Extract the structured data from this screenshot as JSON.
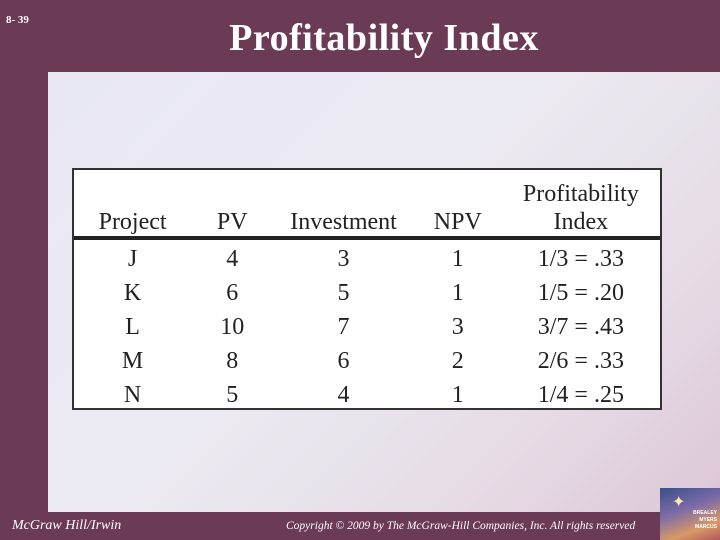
{
  "slide": {
    "number": "8- 39",
    "title": "Profitability Index"
  },
  "table": {
    "headers": {
      "project": "Project",
      "pv": "PV",
      "investment": "Investment",
      "npv": "NPV",
      "pi_line1": "Profitability",
      "pi_line2": "Index"
    },
    "rows": [
      {
        "project": "J",
        "pv": "4",
        "investment": "3",
        "npv": "1",
        "pi": "1/3 = .33"
      },
      {
        "project": "K",
        "pv": "6",
        "investment": "5",
        "npv": "1",
        "pi": "1/5 = .20"
      },
      {
        "project": "L",
        "pv": "10",
        "investment": "7",
        "npv": "3",
        "pi": "3/7 = .43"
      },
      {
        "project": "M",
        "pv": "8",
        "investment": "6",
        "npv": "2",
        "pi": "2/6 = .33"
      },
      {
        "project": "N",
        "pv": "5",
        "investment": "4",
        "npv": "1",
        "pi": "1/4 = .25"
      }
    ]
  },
  "footer": {
    "publisher": "McGraw Hill/Irwin",
    "copyright": "Copyright © 2009 by The McGraw-Hill Companies, Inc. All rights reserved",
    "logo_text": [
      "BREALEY",
      "MYERS",
      "MARCUS"
    ]
  },
  "colors": {
    "frame": "#6b3a55",
    "text": "#ffffff"
  }
}
